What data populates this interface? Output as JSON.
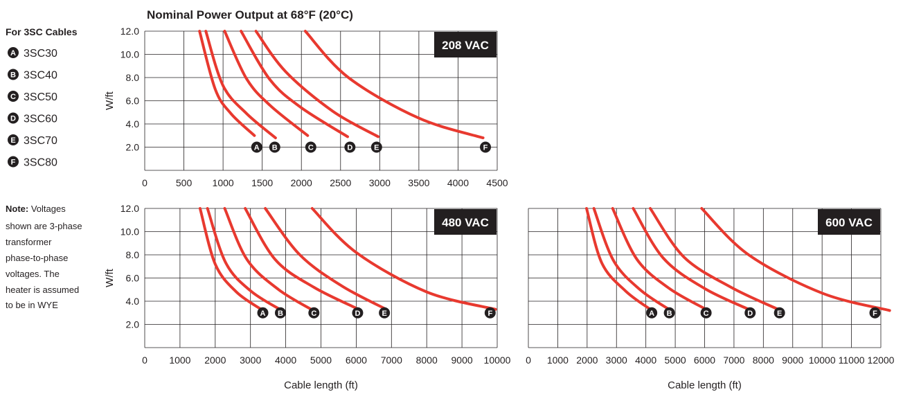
{
  "title": "Nominal Power Output at 68°F (20°C)",
  "legend": {
    "title": "For 3SC Cables",
    "items": [
      {
        "marker": "A",
        "label": "3SC30"
      },
      {
        "marker": "B",
        "label": "3SC40"
      },
      {
        "marker": "C",
        "label": "3SC50"
      },
      {
        "marker": "D",
        "label": "3SC60"
      },
      {
        "marker": "E",
        "label": "3SC70"
      },
      {
        "marker": "F",
        "label": "3SC80"
      }
    ]
  },
  "note": {
    "label": "Note:",
    "lines": [
      " Voltages",
      "shown are 3-phase",
      "transformer",
      "phase-to-phase",
      "voltages. The",
      "heater is assumed",
      "to be in WYE"
    ]
  },
  "colors": {
    "curve": "#e8392f",
    "badge": "#231f20",
    "marker": "#231f20",
    "grid": "#231f20"
  },
  "chart_data": [
    {
      "type": "line",
      "badge": "208 VAC",
      "xlabel": "",
      "ylabel": "W/ft",
      "xlim": [
        0,
        4500
      ],
      "ylim": [
        0,
        12
      ],
      "xticks": [
        0,
        500,
        1000,
        1500,
        2000,
        2500,
        3000,
        3500,
        4000,
        4500
      ],
      "yticks": [
        2,
        4,
        6,
        8,
        10,
        12
      ],
      "ytick_labels": [
        "2.0",
        "4.0",
        "6.0",
        "8.0",
        "10.0",
        "12.0"
      ],
      "grid": true,
      "series": [
        {
          "marker": "A",
          "x": [
            700,
            900,
            1100,
            1400
          ],
          "y": [
            12.0,
            7.0,
            4.9,
            3.0
          ],
          "marker_x": 1430
        },
        {
          "marker": "B",
          "x": [
            780,
            1000,
            1300,
            1670
          ],
          "y": [
            12.0,
            7.3,
            4.9,
            2.8
          ],
          "marker_x": 1660
        },
        {
          "marker": "C",
          "x": [
            1020,
            1300,
            1600,
            2080
          ],
          "y": [
            12.0,
            7.9,
            5.6,
            3.0
          ],
          "marker_x": 2120
        },
        {
          "marker": "D",
          "x": [
            1230,
            1600,
            2000,
            2590
          ],
          "y": [
            12.0,
            7.8,
            5.4,
            2.9
          ],
          "marker_x": 2620
        },
        {
          "marker": "E",
          "x": [
            1420,
            1800,
            2400,
            2980
          ],
          "y": [
            12.0,
            8.5,
            5.1,
            2.9
          ],
          "marker_x": 2960
        },
        {
          "marker": "F",
          "x": [
            2050,
            2600,
            3500,
            4320
          ],
          "y": [
            12.0,
            8.0,
            4.5,
            2.8
          ],
          "marker_x": 4350
        }
      ],
      "marker_y": 2.0
    },
    {
      "type": "line",
      "badge": "480 VAC",
      "xlabel": "Cable length (ft)",
      "ylabel": "W/ft",
      "xlim": [
        0,
        10000
      ],
      "ylim": [
        0,
        12
      ],
      "xticks": [
        0,
        1000,
        2000,
        3000,
        4000,
        5000,
        6000,
        7000,
        8000,
        9000,
        10000
      ],
      "yticks": [
        2,
        4,
        6,
        8,
        10,
        12
      ],
      "ytick_labels": [
        "2.0",
        "4.0",
        "6.0",
        "8.0",
        "10.0",
        "12.0"
      ],
      "grid": true,
      "series": [
        {
          "marker": "A",
          "x": [
            1570,
            2000,
            2600,
            3300
          ],
          "y": [
            12.0,
            7.2,
            4.8,
            3.3
          ],
          "marker_x": 3350
        },
        {
          "marker": "B",
          "x": [
            1780,
            2300,
            3000,
            3830
          ],
          "y": [
            12.0,
            7.3,
            4.9,
            3.3
          ],
          "marker_x": 3850
        },
        {
          "marker": "C",
          "x": [
            2270,
            2900,
            3800,
            4780
          ],
          "y": [
            12.0,
            7.6,
            5.0,
            3.2
          ],
          "marker_x": 4800
        },
        {
          "marker": "D",
          "x": [
            2850,
            3700,
            4800,
            6070
          ],
          "y": [
            12.0,
            7.6,
            5.2,
            3.3
          ],
          "marker_x": 6040
        },
        {
          "marker": "E",
          "x": [
            3420,
            4400,
            5600,
            6850
          ],
          "y": [
            12.0,
            8.0,
            5.3,
            3.3
          ],
          "marker_x": 6800
        },
        {
          "marker": "F",
          "x": [
            4750,
            6000,
            8000,
            9950
          ],
          "y": [
            12.0,
            8.2,
            4.8,
            3.3
          ],
          "marker_x": 9800
        }
      ],
      "marker_y": 3.0
    },
    {
      "type": "line",
      "badge": "600 VAC",
      "xlabel": "Cable length (ft)",
      "ylabel": "",
      "xlim": [
        0,
        12000
      ],
      "ylim": [
        0,
        12
      ],
      "xticks": [
        0,
        1000,
        2000,
        3000,
        4000,
        5000,
        6000,
        7000,
        8000,
        9000,
        10000,
        11000,
        12000
      ],
      "yticks": [
        2,
        4,
        6,
        8,
        10,
        12
      ],
      "ytick_labels": [],
      "grid": true,
      "series": [
        {
          "marker": "A",
          "x": [
            1980,
            2500,
            3300,
            4150
          ],
          "y": [
            12.0,
            7.3,
            4.9,
            3.3
          ],
          "marker_x": 4200
        },
        {
          "marker": "B",
          "x": [
            2230,
            2900,
            3800,
            4780
          ],
          "y": [
            12.0,
            7.5,
            5.0,
            3.3
          ],
          "marker_x": 4800
        },
        {
          "marker": "C",
          "x": [
            2870,
            3700,
            4800,
            6050
          ],
          "y": [
            12.0,
            7.6,
            5.1,
            3.3
          ],
          "marker_x": 6050
        },
        {
          "marker": "D",
          "x": [
            3570,
            4600,
            6000,
            7500
          ],
          "y": [
            12.0,
            7.7,
            5.1,
            3.3
          ],
          "marker_x": 7550
        },
        {
          "marker": "E",
          "x": [
            4150,
            5300,
            6900,
            8500
          ],
          "y": [
            12.0,
            7.8,
            5.2,
            3.3
          ],
          "marker_x": 8550
        },
        {
          "marker": "F",
          "x": [
            5900,
            7500,
            10000,
            12300
          ],
          "y": [
            12.0,
            8.0,
            4.7,
            3.2
          ],
          "marker_x": 11800
        }
      ],
      "marker_y": 3.0
    }
  ]
}
